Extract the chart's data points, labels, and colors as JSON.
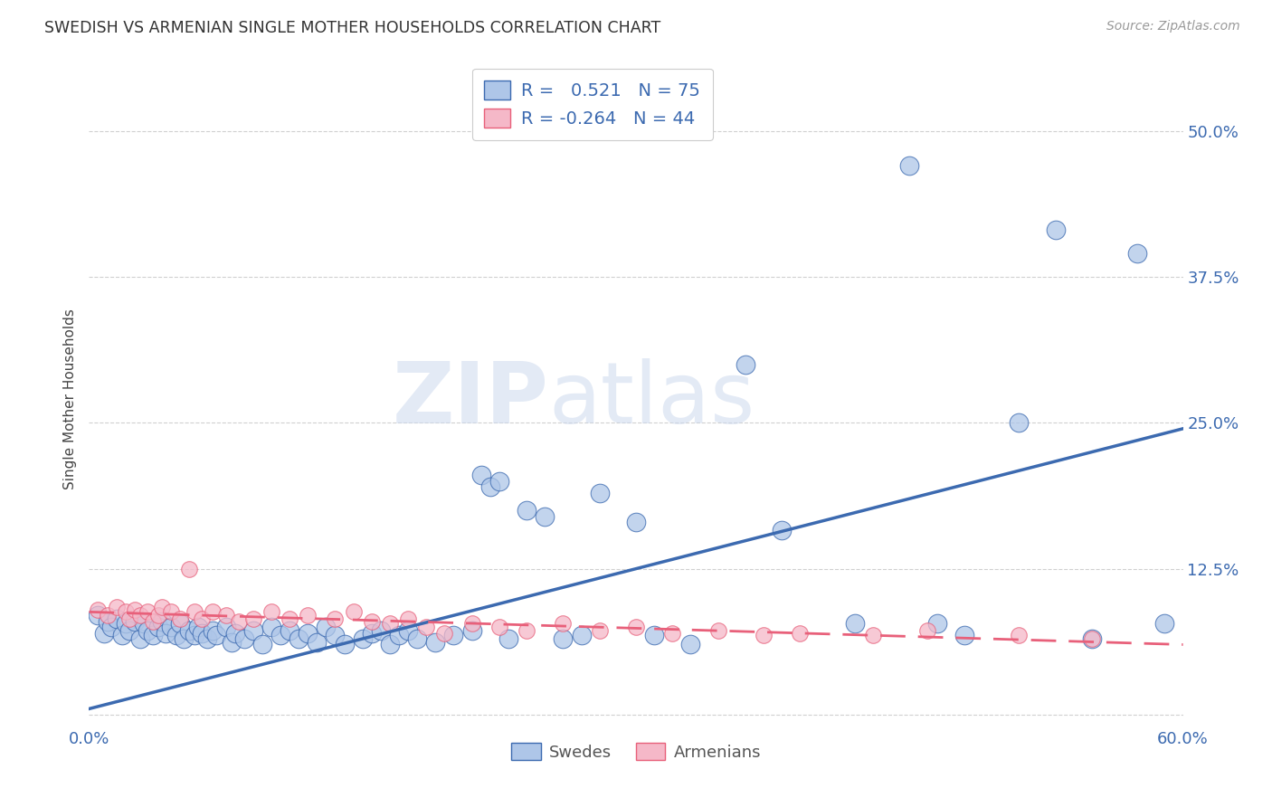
{
  "title": "SWEDISH VS ARMENIAN SINGLE MOTHER HOUSEHOLDS CORRELATION CHART",
  "source": "Source: ZipAtlas.com",
  "ylabel": "Single Mother Households",
  "xlim": [
    0.0,
    0.6
  ],
  "ylim": [
    -0.01,
    0.55
  ],
  "yticks": [
    0.0,
    0.125,
    0.25,
    0.375,
    0.5
  ],
  "ytick_labels": [
    "",
    "12.5%",
    "25.0%",
    "37.5%",
    "50.0%"
  ],
  "xticks": [
    0.0,
    0.1,
    0.2,
    0.3,
    0.4,
    0.5,
    0.6
  ],
  "xtick_labels": [
    "0.0%",
    "",
    "",
    "",
    "",
    "",
    "60.0%"
  ],
  "swedes_R": 0.521,
  "swedes_N": 75,
  "armenians_R": -0.264,
  "armenians_N": 44,
  "blue_color": "#aec6e8",
  "blue_line_color": "#3c6ab0",
  "pink_color": "#f5b8c8",
  "pink_line_color": "#e8607a",
  "watermark_zip": "ZIP",
  "watermark_atlas": "atlas",
  "legend_label_swedes": "Swedes",
  "legend_label_armenians": "Armenians",
  "blue_line_x0": 0.0,
  "blue_line_y0": 0.005,
  "blue_line_x1": 0.6,
  "blue_line_y1": 0.245,
  "pink_line_x0": 0.0,
  "pink_line_y0": 0.088,
  "pink_line_x1": 0.6,
  "pink_line_y1": 0.06,
  "swedes_x": [
    0.005,
    0.008,
    0.01,
    0.012,
    0.015,
    0.018,
    0.02,
    0.022,
    0.025,
    0.028,
    0.03,
    0.032,
    0.035,
    0.038,
    0.04,
    0.042,
    0.045,
    0.048,
    0.05,
    0.052,
    0.055,
    0.058,
    0.06,
    0.062,
    0.065,
    0.068,
    0.07,
    0.075,
    0.078,
    0.08,
    0.085,
    0.09,
    0.095,
    0.1,
    0.105,
    0.11,
    0.115,
    0.12,
    0.125,
    0.13,
    0.135,
    0.14,
    0.15,
    0.155,
    0.16,
    0.165,
    0.17,
    0.175,
    0.18,
    0.19,
    0.2,
    0.21,
    0.215,
    0.22,
    0.225,
    0.23,
    0.24,
    0.25,
    0.26,
    0.27,
    0.28,
    0.3,
    0.31,
    0.33,
    0.36,
    0.38,
    0.42,
    0.45,
    0.465,
    0.48,
    0.51,
    0.53,
    0.55,
    0.575,
    0.59
  ],
  "swedes_y": [
    0.085,
    0.07,
    0.08,
    0.075,
    0.082,
    0.068,
    0.078,
    0.072,
    0.08,
    0.065,
    0.078,
    0.072,
    0.068,
    0.075,
    0.08,
    0.07,
    0.075,
    0.068,
    0.078,
    0.065,
    0.072,
    0.068,
    0.075,
    0.07,
    0.065,
    0.072,
    0.068,
    0.075,
    0.062,
    0.07,
    0.065,
    0.072,
    0.06,
    0.075,
    0.068,
    0.072,
    0.065,
    0.07,
    0.062,
    0.075,
    0.068,
    0.06,
    0.065,
    0.07,
    0.072,
    0.06,
    0.068,
    0.072,
    0.065,
    0.062,
    0.068,
    0.072,
    0.205,
    0.195,
    0.2,
    0.065,
    0.175,
    0.17,
    0.065,
    0.068,
    0.19,
    0.165,
    0.068,
    0.06,
    0.3,
    0.158,
    0.078,
    0.47,
    0.078,
    0.068,
    0.25,
    0.415,
    0.065,
    0.395,
    0.078
  ],
  "armenians_x": [
    0.005,
    0.01,
    0.015,
    0.02,
    0.022,
    0.025,
    0.028,
    0.032,
    0.035,
    0.038,
    0.04,
    0.045,
    0.05,
    0.055,
    0.058,
    0.062,
    0.068,
    0.075,
    0.082,
    0.09,
    0.1,
    0.11,
    0.12,
    0.135,
    0.145,
    0.155,
    0.165,
    0.175,
    0.185,
    0.195,
    0.21,
    0.225,
    0.24,
    0.26,
    0.28,
    0.3,
    0.32,
    0.345,
    0.37,
    0.39,
    0.43,
    0.46,
    0.51,
    0.55
  ],
  "armenians_y": [
    0.09,
    0.085,
    0.092,
    0.088,
    0.082,
    0.09,
    0.085,
    0.088,
    0.08,
    0.085,
    0.092,
    0.088,
    0.082,
    0.125,
    0.088,
    0.082,
    0.088,
    0.085,
    0.08,
    0.082,
    0.088,
    0.082,
    0.085,
    0.082,
    0.088,
    0.08,
    0.078,
    0.082,
    0.075,
    0.07,
    0.078,
    0.075,
    0.072,
    0.078,
    0.072,
    0.075,
    0.07,
    0.072,
    0.068,
    0.07,
    0.068,
    0.072,
    0.068,
    0.065
  ]
}
